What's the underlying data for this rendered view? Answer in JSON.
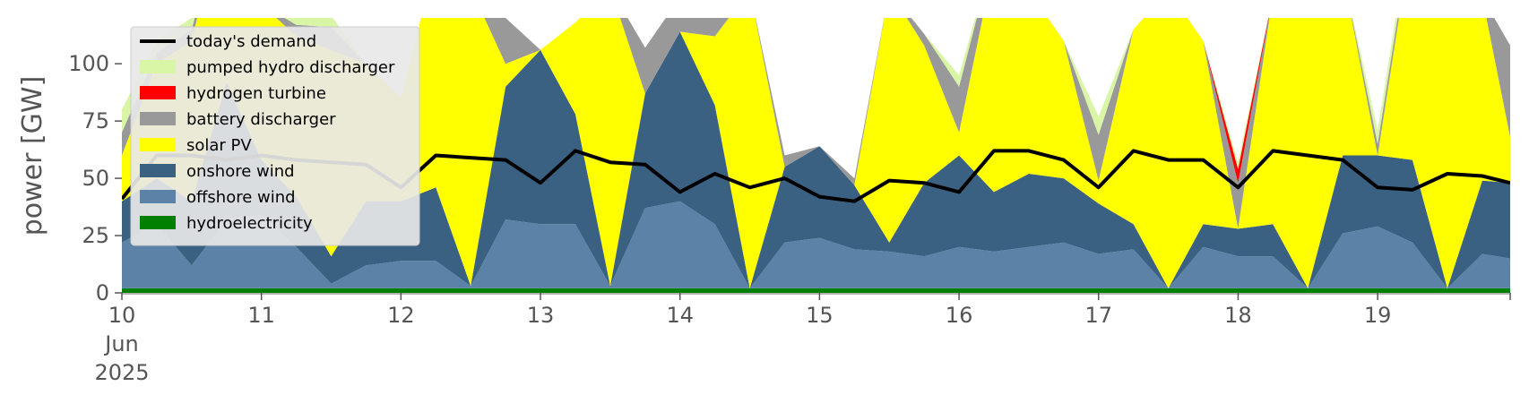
{
  "chart_data": {
    "type": "area",
    "ylabel": "power [GW]",
    "ylim": [
      0,
      120
    ],
    "y_ticks": [
      0,
      25,
      50,
      75,
      100
    ],
    "xlim": [
      10.0,
      19.95
    ],
    "x_ticks": [
      {
        "value": 10,
        "lines": [
          "10",
          "Jun",
          "2025"
        ]
      },
      {
        "value": 11,
        "lines": [
          "11"
        ]
      },
      {
        "value": 12,
        "lines": [
          "12"
        ]
      },
      {
        "value": 13,
        "lines": [
          "13"
        ]
      },
      {
        "value": 14,
        "lines": [
          "14"
        ]
      },
      {
        "value": 15,
        "lines": [
          "15"
        ]
      },
      {
        "value": 16,
        "lines": [
          "16"
        ]
      },
      {
        "value": 17,
        "lines": [
          "17"
        ]
      },
      {
        "value": 18,
        "lines": [
          "18"
        ]
      },
      {
        "value": 19,
        "lines": [
          "19"
        ]
      }
    ],
    "grid": false,
    "legend_position": "top-left",
    "legend": [
      {
        "label": "today's demand",
        "color": "#000000",
        "kind": "line"
      },
      {
        "label": "pumped hydro discharger",
        "color": "#d9f5a6",
        "kind": "patch"
      },
      {
        "label": "hydrogen turbine",
        "color": "#ff0000",
        "kind": "patch"
      },
      {
        "label": "battery discharger",
        "color": "#999999",
        "kind": "patch"
      },
      {
        "label": "solar PV",
        "color": "#ffff00",
        "kind": "patch"
      },
      {
        "label": "onshore wind",
        "color": "#3b6182",
        "kind": "patch"
      },
      {
        "label": "offshore wind",
        "color": "#5d82a8",
        "kind": "patch"
      },
      {
        "label": "hydroelectricity",
        "color": "#008000",
        "kind": "patch"
      }
    ],
    "stack_order": [
      "hydroelectricity",
      "offshore wind",
      "onshore wind",
      "solar PV",
      "battery discharger",
      "hydrogen turbine",
      "pumped hydro discharger"
    ],
    "x": [
      10.0,
      10.25,
      10.5,
      10.75,
      11.0,
      11.25,
      11.5,
      11.75,
      12.0,
      12.25,
      12.5,
      12.75,
      13.0,
      13.25,
      13.5,
      13.75,
      14.0,
      14.25,
      14.5,
      14.75,
      15.0,
      15.25,
      15.5,
      15.75,
      16.0,
      16.25,
      16.5,
      16.75,
      17.0,
      17.25,
      17.5,
      17.75,
      18.0,
      18.25,
      18.5,
      18.75,
      19.0,
      19.25,
      19.5,
      19.75,
      19.95
    ],
    "series": [
      {
        "name": "hydroelectricity",
        "color": "#008000",
        "values": [
          2,
          2,
          2,
          2,
          2,
          2,
          2,
          2,
          2,
          2,
          2,
          2,
          2,
          2,
          2,
          2,
          2,
          2,
          2,
          2,
          2,
          2,
          2,
          2,
          2,
          2,
          2,
          2,
          2,
          2,
          2,
          2,
          2,
          2,
          2,
          2,
          2,
          2,
          2,
          2,
          2
        ]
      },
      {
        "name": "offshore wind",
        "color": "#5d82a8",
        "values": [
          20,
          28,
          10,
          30,
          32,
          18,
          2,
          10,
          12,
          12,
          1,
          30,
          28,
          28,
          1,
          35,
          38,
          28,
          0,
          20,
          22,
          17,
          16,
          14,
          18,
          16,
          18,
          20,
          15,
          17,
          0,
          18,
          14,
          14,
          0,
          24,
          27,
          20,
          0,
          15,
          13
        ]
      },
      {
        "name": "onshore wind",
        "color": "#3b6182",
        "values": [
          18,
          20,
          28,
          60,
          24,
          22,
          12,
          28,
          26,
          32,
          0,
          58,
          76,
          48,
          0,
          50,
          74,
          52,
          0,
          33,
          40,
          28,
          4,
          32,
          40,
          26,
          32,
          28,
          22,
          11,
          0,
          10,
          12,
          14,
          0,
          34,
          31,
          36,
          0,
          32,
          33
        ]
      },
      {
        "name": "solar PV",
        "color": "#ffff00",
        "values": [
          20,
          50,
          70,
          80,
          68,
          70,
          90,
          60,
          45,
          100,
          130,
          10,
          0,
          40,
          130,
          0,
          0,
          30,
          130,
          0,
          0,
          0,
          110,
          60,
          10,
          100,
          80,
          60,
          10,
          85,
          130,
          80,
          0,
          100,
          130,
          80,
          0,
          100,
          130,
          80,
          20
        ]
      },
      {
        "name": "battery discharger",
        "color": "#999999",
        "values": [
          10,
          5,
          5,
          0,
          0,
          5,
          10,
          0,
          0,
          0,
          0,
          20,
          0,
          0,
          0,
          20,
          15,
          10,
          0,
          5,
          0,
          3,
          0,
          5,
          20,
          5,
          0,
          0,
          20,
          0,
          0,
          0,
          20,
          0,
          0,
          0,
          5,
          3,
          0,
          0,
          40
        ]
      },
      {
        "name": "hydrogen turbine",
        "color": "#ff0000",
        "values": [
          0,
          0,
          0,
          0,
          0,
          0,
          0,
          0,
          0,
          0,
          0,
          0,
          0,
          0,
          0,
          0,
          0,
          0,
          0,
          0,
          0,
          0,
          0,
          0,
          0,
          0,
          0,
          0,
          0,
          0,
          0,
          0,
          6,
          0,
          0,
          0,
          0,
          0,
          0,
          0,
          0
        ]
      },
      {
        "name": "pumped hydro discharger",
        "color": "#d9f5a6",
        "values": [
          10,
          5,
          5,
          0,
          5,
          8,
          5,
          0,
          0,
          0,
          0,
          0,
          0,
          0,
          0,
          0,
          0,
          0,
          0,
          0,
          0,
          0,
          0,
          0,
          5,
          0,
          0,
          0,
          8,
          0,
          0,
          0,
          3,
          0,
          0,
          0,
          6,
          5,
          0,
          0,
          0
        ]
      },
      {
        "name": "today's demand",
        "color": "#000000",
        "values": [
          41,
          60,
          60,
          58,
          60,
          58,
          57,
          56,
          46,
          60,
          59,
          58,
          48,
          62,
          57,
          56,
          44,
          52,
          46,
          50,
          42,
          40,
          49,
          48,
          44,
          62,
          62,
          58,
          46,
          62,
          58,
          58,
          46,
          62,
          60,
          58,
          46,
          45,
          52,
          51,
          48
        ]
      }
    ]
  }
}
